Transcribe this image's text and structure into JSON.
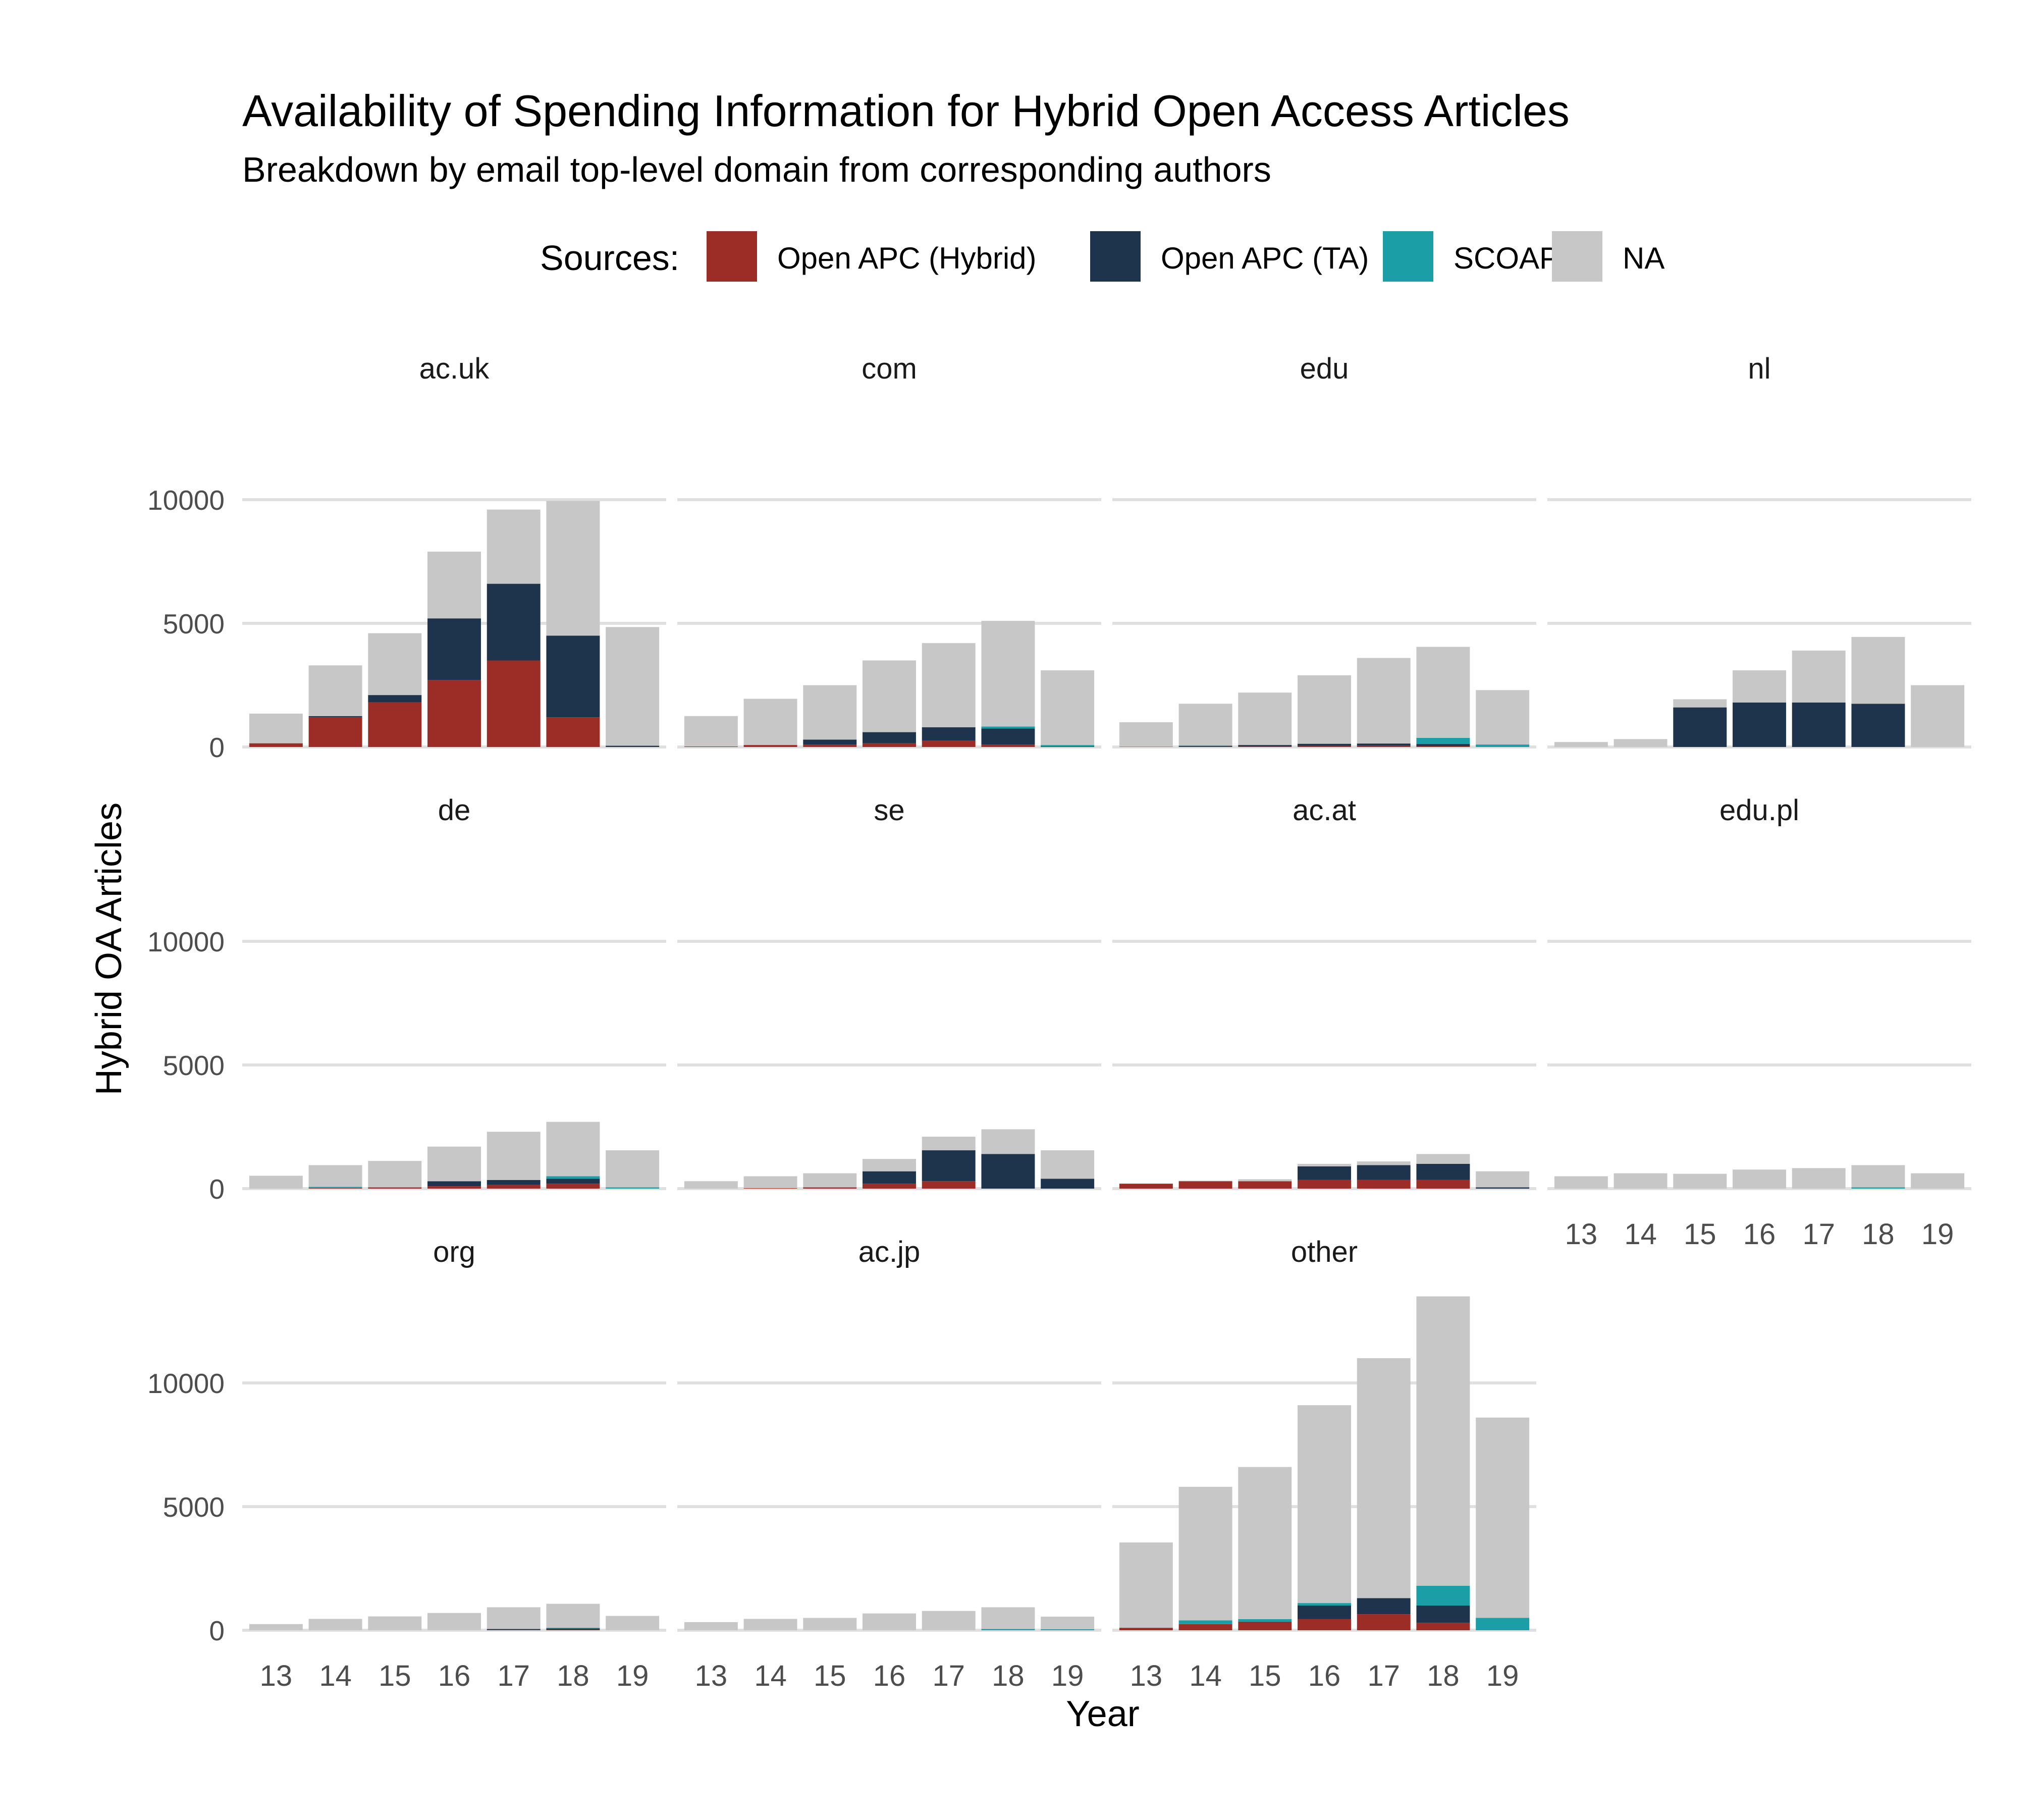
{
  "chart_data": {
    "type": "bar",
    "stacked": true,
    "title": "Availability of Spending Information for Hybrid Open Access Articles",
    "subtitle": "Breakdown by email top-level domain from corresponding authors",
    "xlabel": "Year",
    "ylabel": "Hybrid OA Articles",
    "legend_title": "Sources:",
    "legend_position": "top",
    "grid": true,
    "ylim": [
      0,
      13500
    ],
    "yticks": [
      0,
      5000,
      10000
    ],
    "categories": [
      "13",
      "14",
      "15",
      "16",
      "17",
      "18",
      "19"
    ],
    "sources": [
      {
        "name": "Open APC (Hybrid)",
        "color": "#9C2C26"
      },
      {
        "name": "Open APC (TA)",
        "color": "#1E344C"
      },
      {
        "name": "SCOAP³",
        "color": "#1C9EA6"
      },
      {
        "name": "NA",
        "color": "#C7C7C7"
      }
    ],
    "panels": [
      {
        "label": "ac.uk",
        "values": {
          "Open APC (Hybrid)": [
            150,
            1200,
            1800,
            2700,
            3500,
            1200,
            0
          ],
          "Open APC (TA)": [
            0,
            50,
            300,
            2500,
            3100,
            3300,
            50
          ],
          "SCOAP³": [
            0,
            0,
            0,
            0,
            0,
            0,
            0
          ],
          "NA": [
            1200,
            2050,
            2500,
            2700,
            3000,
            5450,
            4800
          ]
        }
      },
      {
        "label": "com",
        "values": {
          "Open APC (Hybrid)": [
            20,
            80,
            100,
            150,
            250,
            100,
            0
          ],
          "Open APC (TA)": [
            0,
            0,
            200,
            450,
            550,
            650,
            20
          ],
          "SCOAP³": [
            0,
            0,
            0,
            0,
            0,
            80,
            60
          ],
          "NA": [
            1230,
            1870,
            2200,
            2900,
            3400,
            4270,
            3020
          ]
        }
      },
      {
        "label": "edu",
        "values": {
          "Open APC (Hybrid)": [
            10,
            20,
            30,
            50,
            60,
            40,
            0
          ],
          "Open APC (TA)": [
            0,
            30,
            50,
            80,
            80,
            80,
            0
          ],
          "SCOAP³": [
            0,
            0,
            0,
            0,
            0,
            250,
            100
          ],
          "NA": [
            990,
            1700,
            2120,
            2770,
            3460,
            3680,
            2200
          ]
        }
      },
      {
        "label": "nl",
        "values": {
          "Open APC (Hybrid)": [
            0,
            0,
            0,
            0,
            0,
            0,
            0
          ],
          "Open APC (TA)": [
            0,
            0,
            1600,
            1800,
            1800,
            1750,
            0
          ],
          "SCOAP³": [
            0,
            0,
            0,
            0,
            0,
            0,
            0
          ],
          "NA": [
            200,
            320,
            330,
            1300,
            2100,
            2700,
            2500
          ]
        }
      },
      {
        "label": "de",
        "values": {
          "Open APC (Hybrid)": [
            0,
            20,
            50,
            100,
            150,
            200,
            0
          ],
          "Open APC (TA)": [
            0,
            0,
            0,
            200,
            200,
            200,
            0
          ],
          "SCOAP³": [
            0,
            50,
            0,
            0,
            0,
            100,
            50
          ],
          "NA": [
            520,
            880,
            1070,
            1400,
            1950,
            2200,
            1500
          ]
        }
      },
      {
        "label": "se",
        "values": {
          "Open APC (Hybrid)": [
            0,
            20,
            50,
            200,
            300,
            0,
            0
          ],
          "Open APC (TA)": [
            0,
            0,
            0,
            500,
            1250,
            1400,
            400
          ],
          "SCOAP³": [
            0,
            0,
            0,
            0,
            0,
            0,
            0
          ],
          "NA": [
            300,
            480,
            570,
            500,
            550,
            1000,
            1150
          ]
        }
      },
      {
        "label": "ac.at",
        "values": {
          "Open APC (Hybrid)": [
            200,
            300,
            300,
            350,
            350,
            350,
            0
          ],
          "Open APC (TA)": [
            0,
            0,
            0,
            550,
            600,
            650,
            50
          ],
          "SCOAP³": [
            0,
            0,
            0,
            0,
            0,
            0,
            0
          ],
          "NA": [
            0,
            20,
            80,
            100,
            150,
            400,
            650
          ]
        }
      },
      {
        "label": "edu.pl",
        "values": {
          "Open APC (Hybrid)": [
            0,
            0,
            0,
            0,
            0,
            0,
            0
          ],
          "Open APC (TA)": [
            0,
            0,
            0,
            0,
            0,
            0,
            0
          ],
          "SCOAP³": [
            0,
            0,
            0,
            0,
            0,
            50,
            0
          ],
          "NA": [
            500,
            620,
            600,
            770,
            830,
            900,
            620
          ]
        }
      },
      {
        "label": "org",
        "values": {
          "Open APC (Hybrid)": [
            0,
            0,
            0,
            0,
            20,
            30,
            0
          ],
          "Open APC (TA)": [
            0,
            0,
            0,
            0,
            30,
            40,
            0
          ],
          "SCOAP³": [
            0,
            0,
            0,
            0,
            0,
            30,
            0
          ],
          "NA": [
            250,
            460,
            560,
            700,
            880,
            970,
            580
          ]
        }
      },
      {
        "label": "ac.jp",
        "values": {
          "Open APC (Hybrid)": [
            0,
            0,
            0,
            0,
            0,
            0,
            0
          ],
          "Open APC (TA)": [
            0,
            0,
            0,
            0,
            0,
            0,
            0
          ],
          "SCOAP³": [
            0,
            0,
            0,
            0,
            0,
            50,
            40
          ],
          "NA": [
            330,
            460,
            500,
            680,
            780,
            880,
            510
          ]
        }
      },
      {
        "label": "other",
        "values": {
          "Open APC (Hybrid)": [
            100,
            250,
            350,
            450,
            650,
            300,
            0
          ],
          "Open APC (TA)": [
            0,
            0,
            0,
            550,
            650,
            700,
            0
          ],
          "SCOAP³": [
            0,
            150,
            100,
            100,
            0,
            800,
            500
          ],
          "NA": [
            3450,
            5400,
            6150,
            8000,
            9700,
            11700,
            8100
          ]
        }
      }
    ]
  }
}
